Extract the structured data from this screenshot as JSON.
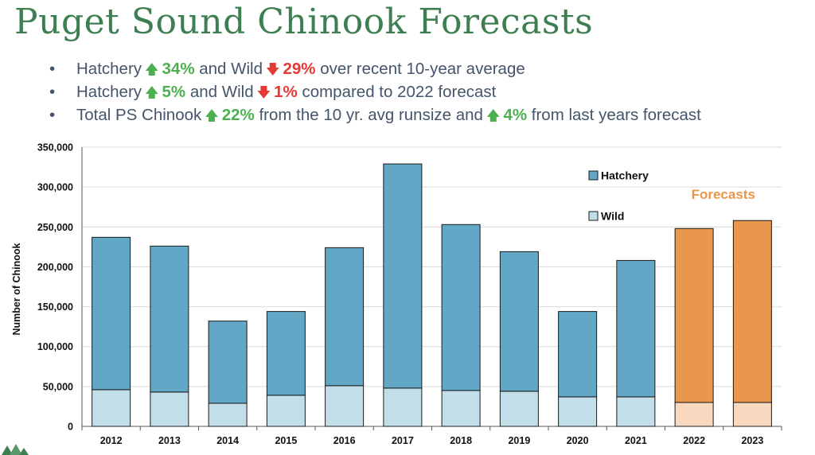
{
  "slide": {
    "title": "Puget Sound Chinook Forecasts",
    "bullets": [
      {
        "a": "Hatchery",
        "b": "34%",
        "c": "and Wild",
        "d": "29%",
        "e": "over recent 10-year average"
      },
      {
        "a": "Hatchery",
        "b": "5%",
        "c": "and Wild",
        "d": "1%",
        "e": "compared to 2022 forecast"
      },
      {
        "a": "Total PS Chinook",
        "b": "22%",
        "c": "from the 10 yr. avg runsize and",
        "d": "4%",
        "e": "from last years forecast"
      }
    ],
    "icons": {
      "bullet": "•",
      "up_arrow": "🡅",
      "down_arrow": "🡇"
    }
  },
  "chart_data": {
    "type": "bar",
    "stacked": true,
    "title": "",
    "xlabel": "",
    "ylabel": "Number of Chinook",
    "ylim": [
      0,
      350000
    ],
    "yticks": [
      0,
      50000,
      100000,
      150000,
      200000,
      250000,
      300000,
      350000
    ],
    "ytick_labels": [
      "0",
      "50,000",
      "100,000",
      "150,000",
      "200,000",
      "250,000",
      "300,000",
      "350,000"
    ],
    "grid": true,
    "legend": "upper-right inside plot",
    "categories": [
      "2012",
      "2013",
      "2014",
      "2015",
      "2016",
      "2017",
      "2018",
      "2019",
      "2020",
      "2021",
      "2022",
      "2023"
    ],
    "series": [
      {
        "name": "Wild",
        "values": [
          46000,
          43000,
          29000,
          39000,
          51000,
          48000,
          45000,
          44000,
          37000,
          37000,
          30000,
          30000
        ]
      },
      {
        "name": "Hatchery",
        "values": [
          191000,
          183000,
          103000,
          105000,
          173000,
          281000,
          208000,
          175000,
          107000,
          171000,
          218000,
          228000
        ]
      }
    ],
    "forecast_categories": [
      "2022",
      "2023"
    ],
    "annotation": "Forecasts",
    "colors": {
      "hatchery": "#62a8c6",
      "wild": "#c2dfe9",
      "forecast_hatchery": "#e8974d",
      "forecast_wild": "#f8d8bf",
      "outline": "#1a1a1a",
      "grid": "#d9d9d9",
      "title": "#3e7f52",
      "bullet_text": "#44546a",
      "up": "#4caf50",
      "down": "#e53935"
    }
  }
}
